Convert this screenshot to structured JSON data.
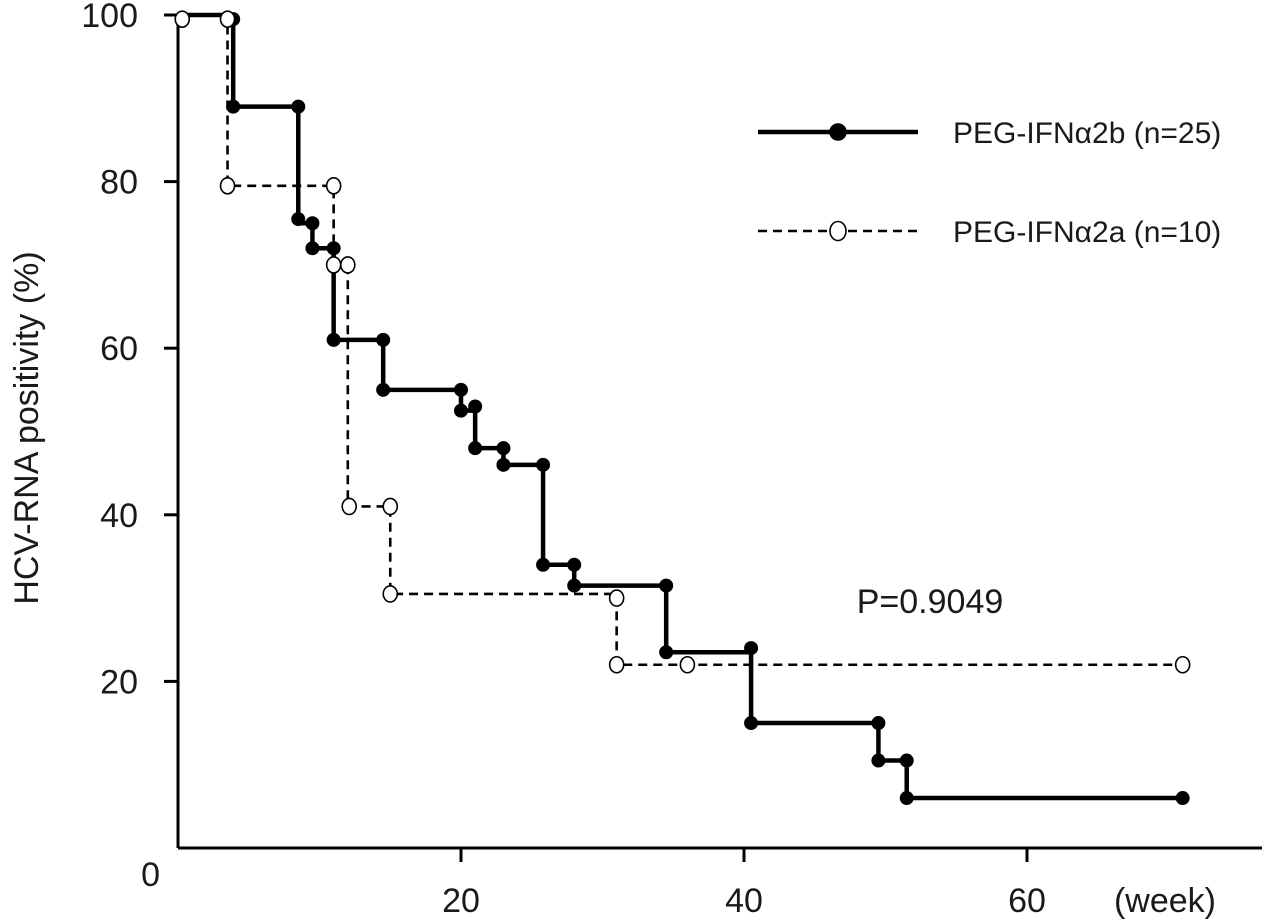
{
  "chart_data": {
    "type": "line",
    "step": true,
    "ylabel": "HCV-RNA positivity (%)",
    "xlabel_unit": "(week)",
    "xlim": [
      0,
      77
    ],
    "ylim": [
      0,
      100
    ],
    "xticks": [
      20,
      40,
      60
    ],
    "yticks": [
      0,
      20,
      40,
      60,
      80,
      100
    ],
    "grid": false,
    "legend_position": "top-right",
    "annotation": "P=0.9049",
    "series": [
      {
        "name": "PEG-IFNα2b (n=25)",
        "line_style": "solid",
        "marker": "filled-circle",
        "color": "#000000",
        "steps": [
          {
            "x": 0,
            "y": 100
          },
          {
            "x": 3.9,
            "y": 89
          },
          {
            "x": 8.5,
            "y": 75
          },
          {
            "x": 9.5,
            "y": 72
          },
          {
            "x": 11,
            "y": 61
          },
          {
            "x": 14.5,
            "y": 55
          },
          {
            "x": 20,
            "y": 52.5
          },
          {
            "x": 21,
            "y": 48
          },
          {
            "x": 23,
            "y": 46
          },
          {
            "x": 25.8,
            "y": 34
          },
          {
            "x": 28,
            "y": 31.5
          },
          {
            "x": 34.5,
            "y": 23.5
          },
          {
            "x": 40.5,
            "y": 15
          },
          {
            "x": 49.5,
            "y": 10.5
          },
          {
            "x": 51.5,
            "y": 6
          }
        ],
        "end_x": 71,
        "markers": [
          {
            "x": 3.9,
            "y": 99.5
          },
          {
            "x": 3.9,
            "y": 89
          },
          {
            "x": 8.5,
            "y": 89
          },
          {
            "x": 8.5,
            "y": 75.5
          },
          {
            "x": 9.5,
            "y": 75
          },
          {
            "x": 9.5,
            "y": 72
          },
          {
            "x": 11,
            "y": 72
          },
          {
            "x": 11,
            "y": 61
          },
          {
            "x": 14.5,
            "y": 61
          },
          {
            "x": 14.5,
            "y": 55
          },
          {
            "x": 20,
            "y": 55
          },
          {
            "x": 20,
            "y": 52.5
          },
          {
            "x": 21,
            "y": 53
          },
          {
            "x": 21,
            "y": 48
          },
          {
            "x": 23,
            "y": 48
          },
          {
            "x": 23,
            "y": 46
          },
          {
            "x": 25.8,
            "y": 46
          },
          {
            "x": 25.8,
            "y": 34
          },
          {
            "x": 28,
            "y": 34
          },
          {
            "x": 28,
            "y": 31.5
          },
          {
            "x": 34.5,
            "y": 31.5
          },
          {
            "x": 34.5,
            "y": 23.5
          },
          {
            "x": 40.5,
            "y": 24
          },
          {
            "x": 40.5,
            "y": 15
          },
          {
            "x": 49.5,
            "y": 15
          },
          {
            "x": 49.5,
            "y": 10.5
          },
          {
            "x": 51.5,
            "y": 10.5
          },
          {
            "x": 51.5,
            "y": 6
          },
          {
            "x": 71,
            "y": 6
          }
        ]
      },
      {
        "name": "PEG-IFNα2a (n=10)",
        "line_style": "dashed",
        "marker": "open-circle",
        "color": "#000000",
        "steps": [
          {
            "x": 0,
            "y": 100
          },
          {
            "x": 3.5,
            "y": 79.5
          },
          {
            "x": 11,
            "y": 70
          },
          {
            "x": 12,
            "y": 41
          },
          {
            "x": 15,
            "y": 30.5
          },
          {
            "x": 31,
            "y": 22
          }
        ],
        "end_x": 71,
        "markers": [
          {
            "x": 0.3,
            "y": 99.5
          },
          {
            "x": 3.5,
            "y": 99.5
          },
          {
            "x": 3.5,
            "y": 79.5
          },
          {
            "x": 11,
            "y": 79.5
          },
          {
            "x": 11,
            "y": 70
          },
          {
            "x": 12,
            "y": 70
          },
          {
            "x": 12.1,
            "y": 41
          },
          {
            "x": 15,
            "y": 41
          },
          {
            "x": 15,
            "y": 30.5
          },
          {
            "x": 31,
            "y": 30
          },
          {
            "x": 31,
            "y": 22
          },
          {
            "x": 36,
            "y": 22
          },
          {
            "x": 71,
            "y": 22
          }
        ]
      }
    ]
  }
}
